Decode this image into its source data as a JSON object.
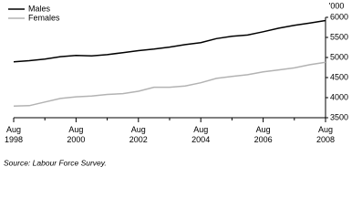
{
  "chart_data": {
    "type": "line",
    "y_unit_label": "'000",
    "categories": [
      "Aug 1998",
      null,
      null,
      null,
      "Aug 2000",
      null,
      null,
      null,
      "Aug 2002",
      null,
      null,
      null,
      "Aug 2004",
      null,
      null,
      null,
      "Aug 2006",
      null,
      null,
      null,
      "Aug 2008"
    ],
    "series": [
      {
        "name": "Males",
        "color": "#000000",
        "values": [
          4890,
          4920,
          4960,
          5020,
          5050,
          5040,
          5070,
          5120,
          5170,
          5210,
          5260,
          5320,
          5370,
          5470,
          5530,
          5560,
          5640,
          5730,
          5800,
          5860,
          5920
        ]
      },
      {
        "name": "Females",
        "color": "#b3b3b3",
        "values": [
          3790,
          3800,
          3890,
          3980,
          4020,
          4040,
          4080,
          4100,
          4160,
          4260,
          4260,
          4290,
          4370,
          4480,
          4530,
          4570,
          4640,
          4690,
          4740,
          4820,
          4880
        ]
      }
    ],
    "ylim": [
      3500,
      6000
    ],
    "yticks": [
      3500,
      4000,
      4500,
      5000,
      5500,
      6000
    ],
    "legend": "top-left",
    "source": "Source: Labour Force Survey."
  }
}
